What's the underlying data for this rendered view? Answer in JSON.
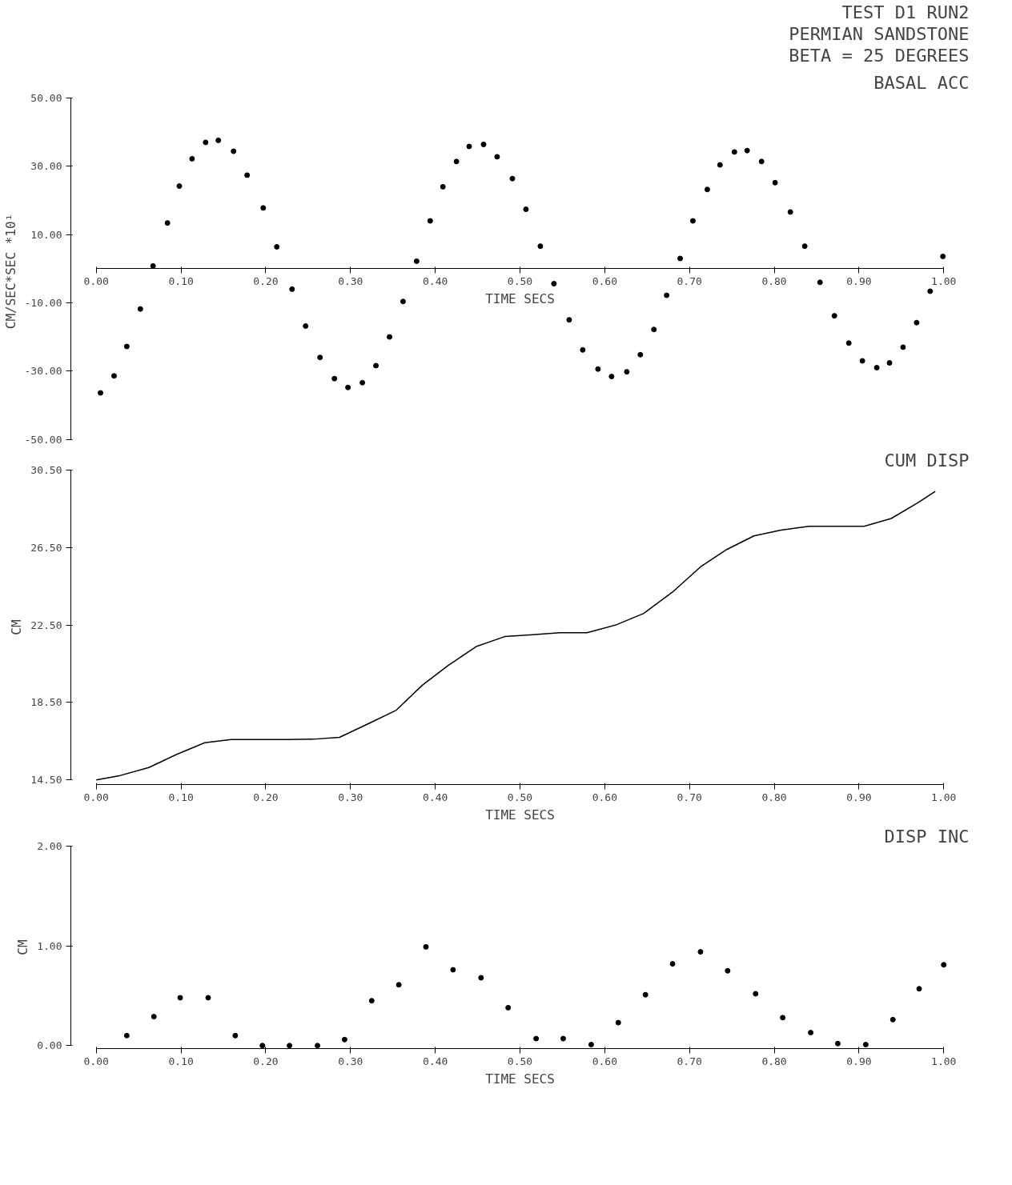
{
  "chart_data": [
    {
      "type": "scatter",
      "title": "BASAL ACC",
      "annotations": [
        "TEST D1 RUN2",
        "PERMIAN SANDSTONE",
        "BETA = 25 DEGREES"
      ],
      "xlabel": "TIME SECS",
      "ylabel": "CM/SEC*SEC *10¹",
      "marker": "circle",
      "color": "#000000",
      "x": [
        0.005,
        0.021,
        0.036,
        0.052,
        0.067,
        0.084,
        0.098,
        0.113,
        0.129,
        0.144,
        0.162,
        0.178,
        0.197,
        0.213,
        0.231,
        0.247,
        0.264,
        0.281,
        0.297,
        0.314,
        0.33,
        0.346,
        0.362,
        0.378,
        0.394,
        0.409,
        0.425,
        0.44,
        0.457,
        0.473,
        0.491,
        0.507,
        0.524,
        0.54,
        0.558,
        0.574,
        0.592,
        0.608,
        0.626,
        0.642,
        0.658,
        0.673,
        0.689,
        0.704,
        0.721,
        0.736,
        0.753,
        0.768,
        0.785,
        0.801,
        0.819,
        0.836,
        0.854,
        0.871,
        0.888,
        0.904,
        0.921,
        0.936,
        0.952,
        0.968,
        0.984,
        0.999
      ],
      "values": [
        -36.4,
        -31.4,
        -22.8,
        -11.8,
        0.8,
        13.4,
        24.2,
        32.2,
        37.0,
        37.6,
        34.4,
        27.4,
        17.8,
        6.4,
        -6.0,
        -16.8,
        -26.0,
        -32.2,
        -34.8,
        -33.4,
        -28.4,
        -20.0,
        -9.6,
        2.2,
        14.0,
        24.0,
        31.4,
        35.8,
        36.4,
        32.8,
        26.4,
        17.4,
        6.6,
        -4.4,
        -15.0,
        -23.8,
        -29.4,
        -31.6,
        -30.2,
        -25.2,
        -17.8,
        -7.8,
        3.0,
        14.0,
        23.2,
        30.4,
        34.2,
        34.6,
        31.4,
        25.2,
        16.6,
        6.6,
        -4.0,
        -13.8,
        -21.8,
        -27.0,
        -29.0,
        -27.6,
        -23.0,
        -15.8,
        -6.6,
        3.6
      ],
      "xlim": [
        0,
        1
      ],
      "ylim": [
        -50,
        50
      ],
      "xticks": [
        {
          "value": 0,
          "label": "0.00"
        },
        {
          "value": 0.1,
          "label": "0.10"
        },
        {
          "value": 0.2,
          "label": "0.20"
        },
        {
          "value": 0.3,
          "label": "0.30"
        },
        {
          "value": 0.4,
          "label": "0.40"
        },
        {
          "value": 0.5,
          "label": "0.50"
        },
        {
          "value": 0.6,
          "label": "0.60"
        },
        {
          "value": 0.7,
          "label": "0.70"
        },
        {
          "value": 0.8,
          "label": "0.80"
        },
        {
          "value": 0.9,
          "label": "0.90"
        },
        {
          "value": 1,
          "label": "1.00"
        }
      ],
      "yticks": [
        {
          "value": 50,
          "label": "50.00"
        },
        {
          "value": 30,
          "label": "30.00"
        },
        {
          "value": 10,
          "label": "10.00"
        },
        {
          "value": -10,
          "label": "-10.00"
        },
        {
          "value": -30,
          "label": "-30.00"
        },
        {
          "value": -50,
          "label": "-50.00"
        }
      ],
      "grid": false
    },
    {
      "type": "line",
      "title": "CUM DISP",
      "xlabel": "TIME SECS",
      "ylabel": "CM",
      "color": "#000000",
      "line_style": "solid",
      "x": [
        0,
        0.026,
        0.062,
        0.095,
        0.128,
        0.159,
        0.192,
        0.226,
        0.256,
        0.287,
        0.321,
        0.354,
        0.385,
        0.415,
        0.449,
        0.482,
        0.515,
        0.547,
        0.579,
        0.613,
        0.646,
        0.68,
        0.713,
        0.744,
        0.776,
        0.808,
        0.841,
        0.874,
        0.906,
        0.938,
        0.969,
        0.99
      ],
      "values": [
        14.5,
        14.7,
        15.14,
        15.82,
        16.42,
        16.58,
        16.58,
        16.58,
        16.6,
        16.7,
        17.4,
        18.1,
        19.4,
        20.4,
        21.4,
        21.9,
        22.0,
        22.1,
        22.1,
        22.5,
        23.1,
        24.2,
        25.5,
        26.4,
        27.1,
        27.4,
        27.6,
        27.6,
        27.6,
        28.0,
        28.8,
        29.4
      ],
      "xlim": [
        0,
        1
      ],
      "ylim": [
        14.5,
        30.5
      ],
      "xticks": [
        {
          "value": 0,
          "label": "0.00"
        },
        {
          "value": 0.1,
          "label": "0.10"
        },
        {
          "value": 0.2,
          "label": "0.20"
        },
        {
          "value": 0.3,
          "label": "0.30"
        },
        {
          "value": 0.4,
          "label": "0.40"
        },
        {
          "value": 0.5,
          "label": "0.50"
        },
        {
          "value": 0.6,
          "label": "0.60"
        },
        {
          "value": 0.7,
          "label": "0.70"
        },
        {
          "value": 0.8,
          "label": "0.80"
        },
        {
          "value": 0.9,
          "label": "0.90"
        },
        {
          "value": 1,
          "label": "1.00"
        }
      ],
      "yticks": [
        {
          "value": 14.5,
          "label": "14.50"
        },
        {
          "value": 18.5,
          "label": "18.50"
        },
        {
          "value": 22.5,
          "label": "22.50"
        },
        {
          "value": 26.5,
          "label": "26.50"
        },
        {
          "value": 30.5,
          "label": "30.50"
        }
      ],
      "grid": false
    },
    {
      "type": "scatter",
      "title": "DISP INC",
      "xlabel": "TIME SECS",
      "ylabel": "CM",
      "marker": "circle",
      "color": "#000000",
      "x": [
        0.036,
        0.068,
        0.099,
        0.132,
        0.164,
        0.196,
        0.228,
        0.261,
        0.293,
        0.325,
        0.357,
        0.389,
        0.421,
        0.454,
        0.486,
        0.519,
        0.551,
        0.584,
        0.616,
        0.648,
        0.68,
        0.713,
        0.745,
        0.778,
        0.81,
        0.843,
        0.875,
        0.908,
        0.94,
        0.971,
        1.0
      ],
      "values": [
        0.1,
        0.29,
        0.48,
        0.48,
        0.1,
        0.0,
        0.0,
        0.0,
        0.06,
        0.45,
        0.61,
        0.99,
        0.76,
        0.68,
        0.38,
        0.07,
        0.07,
        0.01,
        0.23,
        0.51,
        0.82,
        0.94,
        0.75,
        0.52,
        0.28,
        0.13,
        0.02,
        0.01,
        0.26,
        0.57,
        0.81
      ],
      "xlim": [
        0,
        1
      ],
      "ylim": [
        0,
        2
      ],
      "xticks": [
        {
          "value": 0,
          "label": "0.00"
        },
        {
          "value": 0.1,
          "label": "0.10"
        },
        {
          "value": 0.2,
          "label": "0.20"
        },
        {
          "value": 0.3,
          "label": "0.30"
        },
        {
          "value": 0.4,
          "label": "0.40"
        },
        {
          "value": 0.5,
          "label": "0.50"
        },
        {
          "value": 0.6,
          "label": "0.60"
        },
        {
          "value": 0.7,
          "label": "0.70"
        },
        {
          "value": 0.8,
          "label": "0.80"
        },
        {
          "value": 0.9,
          "label": "0.90"
        },
        {
          "value": 1,
          "label": "1.00"
        }
      ],
      "yticks": [
        {
          "value": 0,
          "label": "0.00"
        },
        {
          "value": 1,
          "label": "1.00"
        },
        {
          "value": 2,
          "label": "2.00"
        }
      ],
      "grid": false
    }
  ]
}
